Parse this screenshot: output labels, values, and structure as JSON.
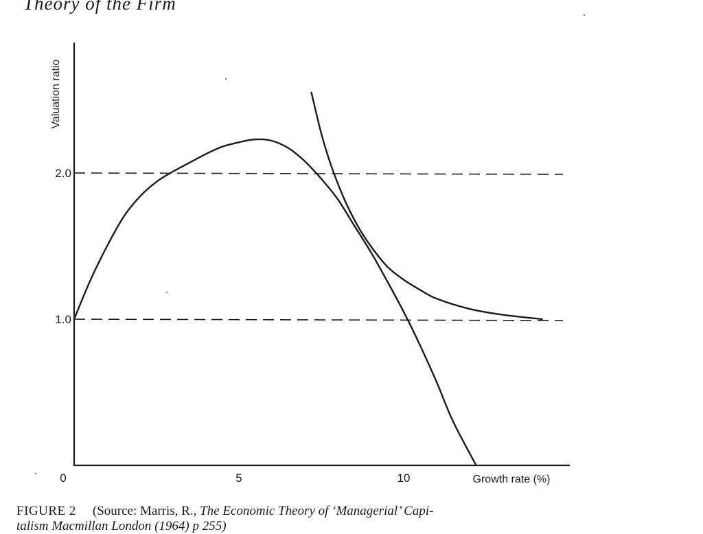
{
  "page": {
    "running_head": "Theory of the Firm",
    "caption": {
      "label": "FIGURE 2",
      "source_open": "(Source: Marris, R., ",
      "source_title": "The Economic Theory of ‘Managerial’ Capi-",
      "line2": "talism Macmillan London (1964) p 255)"
    }
  },
  "chart_data": {
    "type": "line",
    "title": "",
    "xlabel": "Growth rate (%)",
    "ylabel": "Valuation ratio",
    "xlim": [
      0,
      15
    ],
    "ylim": [
      0,
      2.9
    ],
    "x_ticks": [
      {
        "value": 0,
        "label": "0"
      },
      {
        "value": 5,
        "label": "5"
      },
      {
        "value": 10,
        "label": "10"
      }
    ],
    "y_ticks": [
      {
        "value": 1.0,
        "label": "1.0"
      },
      {
        "value": 2.0,
        "label": "2.0"
      }
    ],
    "reference_lines": [
      {
        "y": 1.0,
        "style": "dashed"
      },
      {
        "y": 2.0,
        "style": "dashed"
      }
    ],
    "series": [
      {
        "points": [
          [
            0,
            1.0
          ],
          [
            0.5,
            1.27
          ],
          [
            1,
            1.5
          ],
          [
            1.5,
            1.7
          ],
          [
            2,
            1.84
          ],
          [
            2.5,
            1.94
          ],
          [
            3,
            2.01
          ],
          [
            3.5,
            2.07
          ],
          [
            4,
            2.13
          ],
          [
            4.5,
            2.18
          ],
          [
            5,
            2.21
          ],
          [
            5.5,
            2.23
          ],
          [
            6,
            2.22
          ],
          [
            6.5,
            2.17
          ],
          [
            7,
            2.08
          ],
          [
            7.5,
            1.96
          ],
          [
            8,
            1.82
          ],
          [
            8.5,
            1.64
          ],
          [
            9,
            1.46
          ],
          [
            9.5,
            1.26
          ],
          [
            10,
            1.05
          ],
          [
            10.5,
            0.82
          ],
          [
            11,
            0.57
          ],
          [
            11.5,
            0.3
          ],
          [
            12.2,
            0.0
          ]
        ]
      },
      {
        "points": [
          [
            7.2,
            2.55
          ],
          [
            7.5,
            2.27
          ],
          [
            7.8,
            2.05
          ],
          [
            8.2,
            1.82
          ],
          [
            8.6,
            1.64
          ],
          [
            9,
            1.5
          ],
          [
            9.5,
            1.36
          ],
          [
            10,
            1.27
          ],
          [
            10.5,
            1.2
          ],
          [
            11,
            1.14
          ],
          [
            12,
            1.07
          ],
          [
            13,
            1.03
          ],
          [
            14.2,
            1.0
          ]
        ]
      }
    ]
  }
}
